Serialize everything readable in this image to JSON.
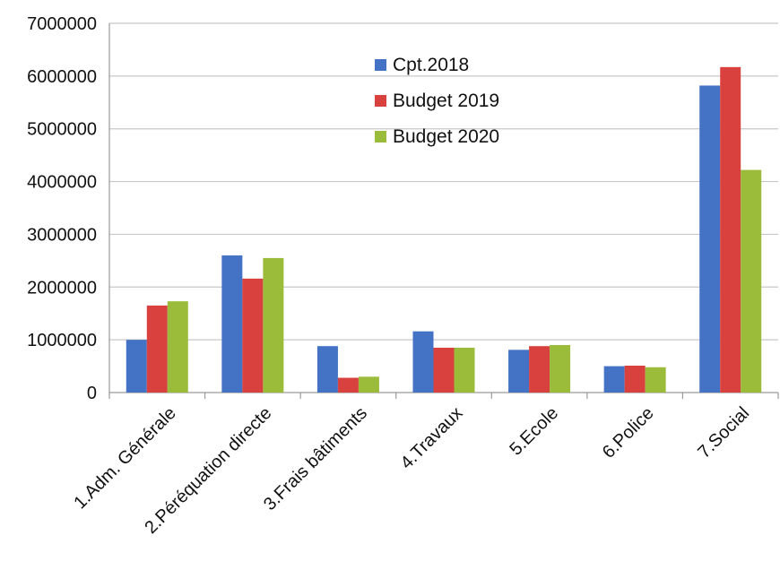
{
  "chart_data": {
    "type": "bar",
    "title": "",
    "xlabel": "",
    "ylabel": "",
    "ylim": [
      0,
      7000000
    ],
    "yticks": [
      0,
      1000000,
      2000000,
      3000000,
      4000000,
      5000000,
      6000000,
      7000000
    ],
    "grid": true,
    "legend_position": "top-right",
    "categories": [
      "1.Adm. Générale",
      "2.Péréquation directe",
      "3.Frais bâtiments",
      "4.Travaux",
      "5.Ecole",
      "6.Police",
      "7.Social"
    ],
    "series": [
      {
        "name": "Cpt.2018",
        "color": "#4472C4",
        "values": [
          1000000,
          2600000,
          880000,
          1160000,
          810000,
          500000,
          5820000
        ]
      },
      {
        "name": "Budget 2019",
        "color": "#D9413F",
        "values": [
          1650000,
          2160000,
          280000,
          850000,
          880000,
          510000,
          6170000
        ]
      },
      {
        "name": "Budget 2020",
        "color": "#9BBB3B",
        "values": [
          1730000,
          2550000,
          300000,
          850000,
          900000,
          480000,
          4220000
        ]
      }
    ]
  }
}
